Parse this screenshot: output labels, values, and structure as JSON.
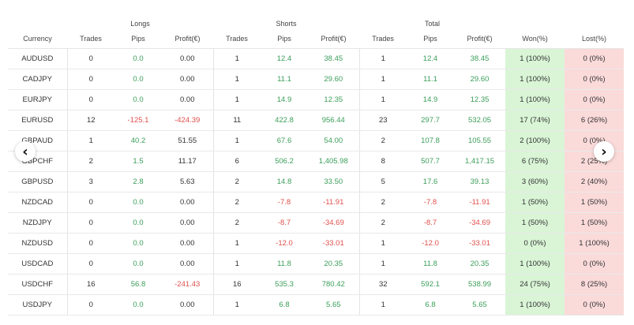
{
  "groups": {
    "longs": "Longs",
    "shorts": "Shorts",
    "total": "Total"
  },
  "columns": [
    "Currency",
    "Trades",
    "Pips",
    "Profit(€)",
    "Trades",
    "Pips",
    "Profit(€)",
    "Trades",
    "Pips",
    "Profit(€)",
    "Won(%)",
    "Lost(%)"
  ],
  "rows": [
    [
      "AUDUSD",
      "0",
      "0.0",
      "0.00",
      "1",
      "12.4",
      "38.45",
      "1",
      "12.4",
      "38.45",
      "1 (100%)",
      "0 (0%)"
    ],
    [
      "CADJPY",
      "0",
      "0.0",
      "0.00",
      "1",
      "11.1",
      "29.60",
      "1",
      "11.1",
      "29.60",
      "1 (100%)",
      "0 (0%)"
    ],
    [
      "EURJPY",
      "0",
      "0.0",
      "0.00",
      "1",
      "14.9",
      "12.35",
      "1",
      "14.9",
      "12.35",
      "1 (100%)",
      "0 (0%)"
    ],
    [
      "EURUSD",
      "12",
      "-125.1",
      "-424.39",
      "11",
      "422.8",
      "956.44",
      "23",
      "297.7",
      "532.05",
      "17 (74%)",
      "6 (26%)"
    ],
    [
      "GBPAUD",
      "1",
      "40.2",
      "51.55",
      "1",
      "67.6",
      "54.00",
      "2",
      "107.8",
      "105.55",
      "2 (100%)",
      "0 (0%)"
    ],
    [
      "GBPCHF",
      "2",
      "1.5",
      "11.17",
      "6",
      "506.2",
      "1,405.98",
      "8",
      "507.7",
      "1,417.15",
      "6 (75%)",
      "2 (25%)"
    ],
    [
      "GBPUSD",
      "3",
      "2.8",
      "5.63",
      "2",
      "14.8",
      "33.50",
      "5",
      "17.6",
      "39.13",
      "3 (60%)",
      "2 (40%)"
    ],
    [
      "NZDCAD",
      "0",
      "0.0",
      "0.00",
      "2",
      "-7.8",
      "-11.91",
      "2",
      "-7.8",
      "-11.91",
      "1 (50%)",
      "1 (50%)"
    ],
    [
      "NZDJPY",
      "0",
      "0.0",
      "0.00",
      "2",
      "-8.7",
      "-34.69",
      "2",
      "-8.7",
      "-34.69",
      "1 (50%)",
      "1 (50%)"
    ],
    [
      "NZDUSD",
      "0",
      "0.0",
      "0.00",
      "1",
      "-12.0",
      "-33.01",
      "1",
      "-12.0",
      "-33.01",
      "0 (0%)",
      "1 (100%)"
    ],
    [
      "USDCAD",
      "0",
      "0.0",
      "0.00",
      "1",
      "11.8",
      "20.35",
      "1",
      "11.8",
      "20.35",
      "1 (100%)",
      "0 (0%)"
    ],
    [
      "USDCHF",
      "16",
      "56.8",
      "-241.43",
      "16",
      "535.3",
      "780.42",
      "32",
      "592.1",
      "538.99",
      "24 (75%)",
      "8 (25%)"
    ],
    [
      "USDJPY",
      "0",
      "0.0",
      "0.00",
      "1",
      "6.8",
      "5.65",
      "1",
      "6.8",
      "5.65",
      "1 (100%)",
      "0 (0%)"
    ]
  ],
  "nav": {
    "prev_icon": "chevron-left-icon",
    "next_icon": "chevron-right-icon",
    "prev_glyph": "‹",
    "next_glyph": "›"
  },
  "colors": {
    "positive": "#3b9e5a",
    "negative": "#e0504c",
    "won_bg": "#d9f5d6",
    "lost_bg": "#fbdada"
  }
}
